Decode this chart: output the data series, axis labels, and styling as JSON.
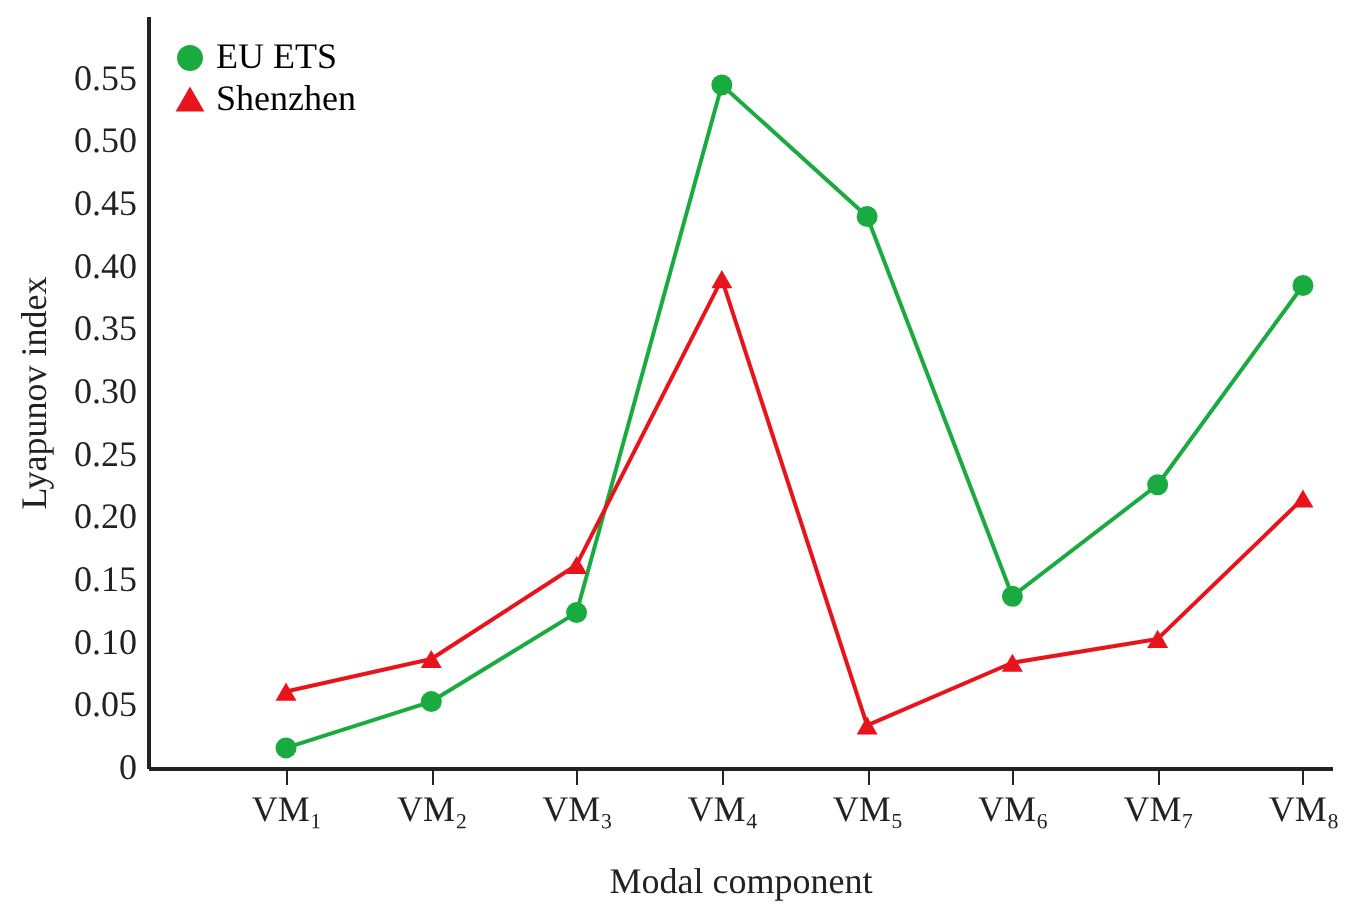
{
  "chart_data": {
    "type": "line",
    "xlabel": "Modal component",
    "ylabel": "Lyapunov index",
    "categories": [
      "VM₁",
      "VM₂",
      "VM₃",
      "VM₄",
      "VM₅",
      "VM₆",
      "VM₇",
      "VM₈"
    ],
    "series": [
      {
        "name": "EU ETS",
        "color": "#1aab40",
        "marker": "circle",
        "values": [
          0.016,
          0.053,
          0.124,
          0.545,
          0.44,
          0.137,
          0.226,
          0.385
        ]
      },
      {
        "name": "Shenzhen",
        "color": "#e8141c",
        "marker": "triangle",
        "values": [
          0.061,
          0.087,
          0.162,
          0.39,
          0.034,
          0.084,
          0.103,
          0.215
        ]
      }
    ],
    "ylim": [
      0,
      0.6
    ],
    "yticks": [
      0,
      {
        "value": 0.05,
        "label": "0.05"
      },
      {
        "value": 0.1,
        "label": "0.10"
      },
      {
        "value": 0.15,
        "label": "0.15"
      },
      {
        "value": 0.2,
        "label": "0.20"
      },
      {
        "value": 0.25,
        "label": "0.25"
      },
      {
        "value": 0.3,
        "label": "0.30"
      },
      {
        "value": 0.35,
        "label": "0.35"
      },
      {
        "value": 0.4,
        "label": "0.40"
      },
      {
        "value": 0.45,
        "label": "0.45"
      },
      {
        "value": 0.5,
        "label": "0.50"
      },
      {
        "value": 0.55,
        "label": "0.55"
      }
    ],
    "grid": false,
    "legend": "top left",
    "line_style": "solid"
  }
}
